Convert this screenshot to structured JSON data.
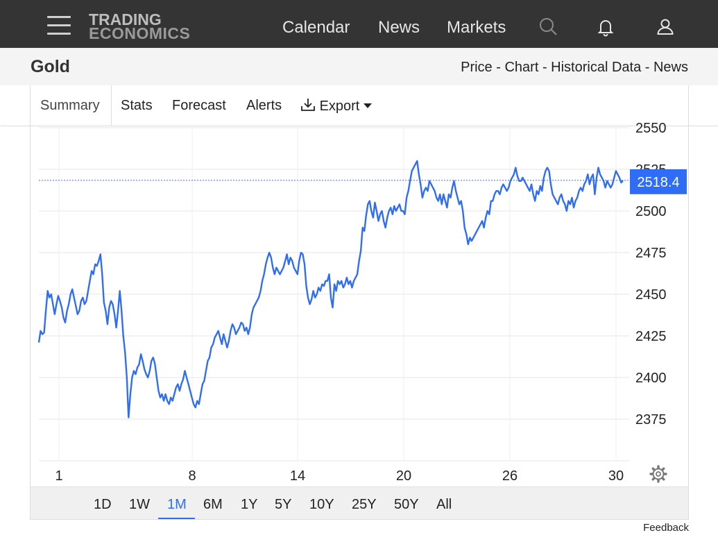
{
  "header": {
    "logo_line1": "TRADING",
    "logo_line2": "ECONOMICS",
    "nav": [
      "Calendar",
      "News",
      "Markets"
    ],
    "icons": [
      "menu-icon",
      "search-icon",
      "bell-icon",
      "user-icon"
    ]
  },
  "subheader": {
    "title": "Gold",
    "links": [
      "Price",
      "Chart",
      "Historical Data",
      "News"
    ]
  },
  "tabs": {
    "items": [
      "Summary",
      "Stats",
      "Forecast",
      "Alerts",
      "Export"
    ],
    "active": "Summary"
  },
  "chart_data": {
    "type": "line",
    "series": [
      {
        "y": [
          2421,
          2428,
          2426,
          2427,
          2440,
          2452,
          2448,
          2450,
          2444,
          2438,
          2444,
          2449,
          2446,
          2442,
          2436,
          2433,
          2440,
          2444,
          2450,
          2453,
          2448,
          2443,
          2438,
          2440,
          2446,
          2448,
          2444,
          2446,
          2452,
          2458,
          2464,
          2462,
          2468,
          2467,
          2470,
          2474,
          2462,
          2445,
          2440,
          2432,
          2442,
          2446,
          2444,
          2438,
          2430,
          2440,
          2452,
          2440,
          2425,
          2415,
          2400,
          2376,
          2390,
          2400,
          2404,
          2402,
          2406,
          2408,
          2414,
          2410,
          2405,
          2402,
          2400,
          2404,
          2410,
          2412,
          2408,
          2400,
          2392,
          2388,
          2390,
          2386,
          2390,
          2386,
          2384,
          2388,
          2386,
          2390,
          2394,
          2396,
          2392,
          2396,
          2399,
          2404,
          2400,
          2396,
          2392,
          2388,
          2384,
          2382,
          2386,
          2384,
          2390,
          2396,
          2398,
          2404,
          2410,
          2412,
          2418,
          2420,
          2424,
          2426,
          2428,
          2424,
          2420,
          2426,
          2422,
          2418,
          2422,
          2428,
          2432,
          2430,
          2426,
          2428,
          2430,
          2433,
          2432,
          2428,
          2430,
          2426,
          2430,
          2438,
          2442,
          2444,
          2446,
          2448,
          2452,
          2458,
          2462,
          2468,
          2472,
          2475,
          2472,
          2466,
          2462,
          2466,
          2464,
          2462,
          2464,
          2466,
          2470,
          2474,
          2468,
          2472,
          2470,
          2466,
          2464,
          2462,
          2470,
          2475,
          2474,
          2468,
          2455,
          2448,
          2444,
          2447,
          2452,
          2448,
          2450,
          2454,
          2452,
          2456,
          2455,
          2458,
          2458,
          2462,
          2448,
          2442,
          2456,
          2452,
          2458,
          2456,
          2458,
          2454,
          2456,
          2460,
          2456,
          2458,
          2454,
          2458,
          2460,
          2462,
          2470,
          2476,
          2490,
          2488,
          2497,
          2504,
          2506,
          2500,
          2496,
          2505,
          2500,
          2494,
          2498,
          2500,
          2494,
          2490,
          2496,
          2500,
          2502,
          2498,
          2503,
          2500,
          2502,
          2504,
          2500,
          2500,
          2498,
          2508,
          2512,
          2518,
          2524,
          2526,
          2528,
          2530,
          2522,
          2516,
          2508,
          2512,
          2514,
          2512,
          2518,
          2516,
          2514,
          2512,
          2508,
          2506,
          2510,
          2504,
          2510,
          2506,
          2502,
          2510,
          2508,
          2514,
          2518,
          2512,
          2508,
          2504,
          2506,
          2500,
          2490,
          2486,
          2480,
          2484,
          2482,
          2484,
          2486,
          2488,
          2490,
          2492,
          2494,
          2490,
          2496,
          2500,
          2498,
          2506,
          2506,
          2510,
          2512,
          2512,
          2510,
          2514,
          2516,
          2514,
          2512,
          2514,
          2518,
          2520,
          2522,
          2526,
          2521,
          2518,
          2518,
          2520,
          2518,
          2516,
          2514,
          2512,
          2516,
          2510,
          2506,
          2512,
          2510,
          2515,
          2512,
          2520,
          2524,
          2526,
          2524,
          2516,
          2510,
          2508,
          2506,
          2504,
          2508,
          2510,
          2506,
          2504,
          2500,
          2506,
          2504,
          2508,
          2502,
          2506,
          2508,
          2512,
          2514,
          2512,
          2516,
          2518,
          2522,
          2516,
          2520,
          2522,
          2510,
          2520,
          2526,
          2522,
          2520,
          2518,
          2514,
          2518,
          2516,
          2514,
          2516,
          2520,
          2524,
          2522,
          2520,
          2517,
          2518.4
        ]
      }
    ],
    "last_value": 2518.4,
    "x_ticks": [
      "1",
      "8",
      "14",
      "20",
      "26",
      "30"
    ],
    "y_ticks": [
      2375,
      2400,
      2425,
      2450,
      2475,
      2500,
      2525,
      2550
    ],
    "ylim": [
      2350,
      2550
    ],
    "color": "#2f6df6",
    "grid": true
  },
  "ranges": {
    "items": [
      "1D",
      "1W",
      "1M",
      "6M",
      "1Y",
      "5Y",
      "10Y",
      "25Y",
      "50Y",
      "All"
    ],
    "active": "1M"
  },
  "footer": {
    "feedback": "Feedback"
  }
}
